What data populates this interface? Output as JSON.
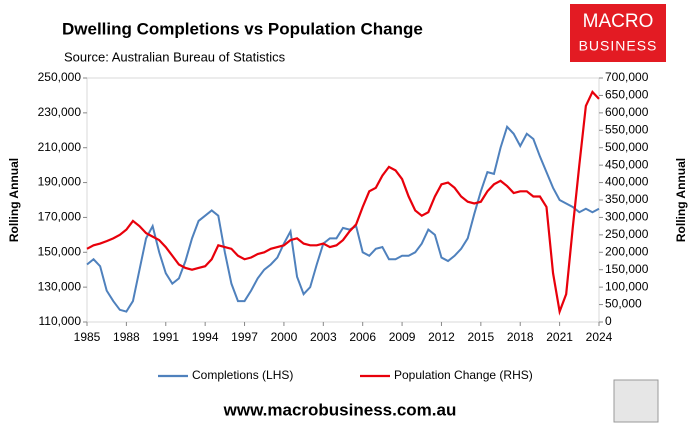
{
  "chart_data": {
    "type": "line",
    "title": "Dwelling Completions vs Population Change",
    "subtitle": "Source: Australian Bureau of Statistics",
    "ylabel": "Rolling Annual",
    "y2label": "Rolling Annual",
    "logo": [
      "MACRO",
      "BUSINESS"
    ],
    "footer": "www.macrobusiness.com.au",
    "x": [
      1985,
      1985.5,
      1986,
      1986.5,
      1987,
      1987.5,
      1988,
      1988.5,
      1989,
      1989.5,
      1990,
      1990.5,
      1991,
      1991.5,
      1992,
      1992.5,
      1993,
      1993.5,
      1994,
      1994.5,
      1995,
      1995.5,
      1996,
      1996.5,
      1997,
      1997.5,
      1998,
      1998.5,
      1999,
      1999.5,
      2000,
      2000.5,
      2001,
      2001.5,
      2002,
      2002.5,
      2003,
      2003.5,
      2004,
      2004.5,
      2005,
      2005.5,
      2006,
      2006.5,
      2007,
      2007.5,
      2008,
      2008.5,
      2009,
      2009.5,
      2010,
      2010.5,
      2011,
      2011.5,
      2012,
      2012.5,
      2013,
      2013.5,
      2014,
      2014.5,
      2015,
      2015.5,
      2016,
      2016.5,
      2017,
      2017.5,
      2018,
      2018.5,
      2019,
      2019.5,
      2020,
      2020.5,
      2021,
      2021.5,
      2022,
      2022.5,
      2023,
      2023.5,
      2024
    ],
    "series": [
      {
        "name": "Completions (LHS)",
        "color": "#4f81bd",
        "axis": "y",
        "values": [
          143000,
          146000,
          142000,
          128000,
          122000,
          117000,
          116000,
          122000,
          140000,
          158000,
          165000,
          150000,
          138000,
          132000,
          135000,
          145000,
          158000,
          168000,
          171000,
          174000,
          171000,
          150000,
          132000,
          122000,
          122000,
          128000,
          135000,
          140000,
          143000,
          147000,
          155000,
          162000,
          136000,
          126000,
          130000,
          143000,
          155000,
          158000,
          158000,
          164000,
          163000,
          165000,
          150000,
          148000,
          152000,
          153000,
          146000,
          146000,
          148000,
          148000,
          150000,
          155000,
          163000,
          160000,
          147000,
          145000,
          148000,
          152000,
          158000,
          172000,
          185000,
          196000,
          195000,
          210000,
          222000,
          218000,
          211000,
          218000,
          215000,
          205000,
          196000,
          187000,
          180000,
          178000,
          176000,
          173000,
          175000,
          173000,
          175000
        ]
      },
      {
        "name": "Population Change (RHS)",
        "color": "#e8000b",
        "axis": "y2",
        "values": [
          210000,
          220000,
          225000,
          232000,
          240000,
          250000,
          265000,
          290000,
          275000,
          255000,
          245000,
          235000,
          215000,
          190000,
          165000,
          155000,
          150000,
          155000,
          160000,
          180000,
          220000,
          215000,
          210000,
          190000,
          180000,
          185000,
          195000,
          200000,
          210000,
          215000,
          220000,
          235000,
          240000,
          225000,
          220000,
          220000,
          225000,
          215000,
          220000,
          235000,
          260000,
          280000,
          330000,
          375000,
          385000,
          420000,
          445000,
          435000,
          410000,
          360000,
          320000,
          305000,
          315000,
          360000,
          395000,
          400000,
          385000,
          360000,
          345000,
          340000,
          345000,
          375000,
          395000,
          405000,
          390000,
          370000,
          375000,
          375000,
          360000,
          360000,
          330000,
          140000,
          30000,
          80000,
          270000,
          450000,
          620000,
          660000,
          640000
        ]
      }
    ],
    "xlim": [
      1985,
      2024
    ],
    "xticks": [
      1985,
      1988,
      1991,
      1994,
      1997,
      2000,
      2003,
      2006,
      2009,
      2012,
      2015,
      2018,
      2021,
      2024
    ],
    "ylim": [
      110000,
      250000
    ],
    "yticks": [
      {
        "value": 110000,
        "label": "110,000"
      },
      {
        "value": 130000,
        "label": "130,000"
      },
      {
        "value": 150000,
        "label": "150,000"
      },
      {
        "value": 170000,
        "label": "170,000"
      },
      {
        "value": 190000,
        "label": "190,000"
      },
      {
        "value": 210000,
        "label": "210,000"
      },
      {
        "value": 230000,
        "label": "230,000"
      },
      {
        "value": 250000,
        "label": "250,000"
      }
    ],
    "y2lim": [
      0,
      700000
    ],
    "y2ticks": [
      0,
      {
        "value": 50000,
        "label": "50,000"
      },
      {
        "value": 100000,
        "label": "100,000"
      },
      {
        "value": 150000,
        "label": "150,000"
      },
      {
        "value": 200000,
        "label": "200,000"
      },
      {
        "value": 250000,
        "label": "250,000"
      },
      {
        "value": 300000,
        "label": "300,000"
      },
      {
        "value": 350000,
        "label": "350,000"
      },
      {
        "value": 400000,
        "label": "400,000"
      },
      {
        "value": 450000,
        "label": "450,000"
      },
      {
        "value": 500000,
        "label": "500,000"
      },
      {
        "value": 550000,
        "label": "550,000"
      },
      {
        "value": 600000,
        "label": "600,000"
      },
      {
        "value": 650000,
        "label": "650,000"
      },
      {
        "value": 700000,
        "label": "700,000"
      }
    ]
  }
}
